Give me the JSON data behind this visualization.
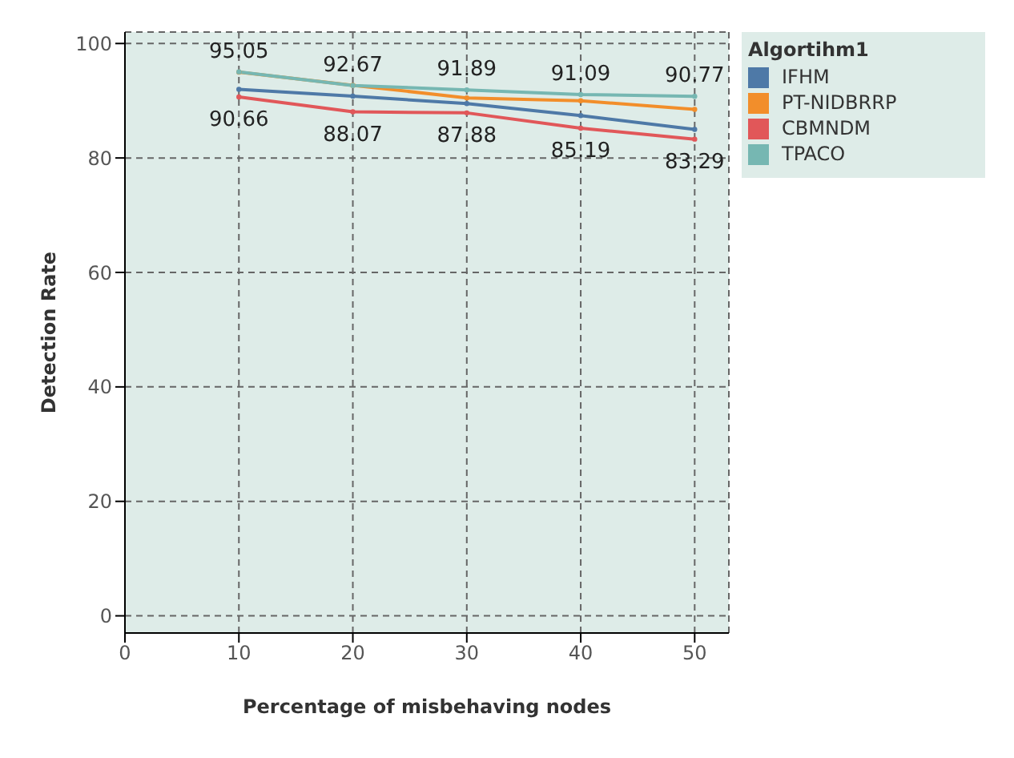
{
  "chart_data": {
    "type": "line",
    "xlabel": "Percentage of misbehaving nodes",
    "ylabel": "Detection Rate",
    "legend_title": "Algortihm1",
    "x": [
      10,
      20,
      30,
      40,
      50
    ],
    "series": [
      {
        "name": "IFHM",
        "color": "#4e79a7",
        "values": [
          92.0,
          90.8,
          89.5,
          87.4,
          85.0
        ]
      },
      {
        "name": "PT-NIDBRRP",
        "color": "#f28e2b",
        "values": [
          95.0,
          92.7,
          90.5,
          90.0,
          88.5
        ]
      },
      {
        "name": "CBMNDM",
        "color": "#e15759",
        "values": [
          90.66,
          88.07,
          87.88,
          85.19,
          83.29
        ],
        "value_labels": [
          "90.66",
          "88.07",
          "87.88",
          "85.19",
          "83.29"
        ]
      },
      {
        "name": "TPACO",
        "color": "#76b7b2",
        "values": [
          95.05,
          92.67,
          91.89,
          91.09,
          90.77
        ],
        "value_labels": [
          "95.05",
          "92.67",
          "91.89",
          "91.09",
          "90.77"
        ]
      }
    ],
    "xlim": [
      0,
      53
    ],
    "xticks": [
      0,
      10,
      20,
      30,
      40,
      50
    ],
    "ylim": [
      -3,
      102
    ],
    "yticks": [
      0,
      20,
      40,
      60,
      80,
      100
    ],
    "grid": true,
    "legend": "top right",
    "marker": "circle",
    "line_style": "solid"
  }
}
